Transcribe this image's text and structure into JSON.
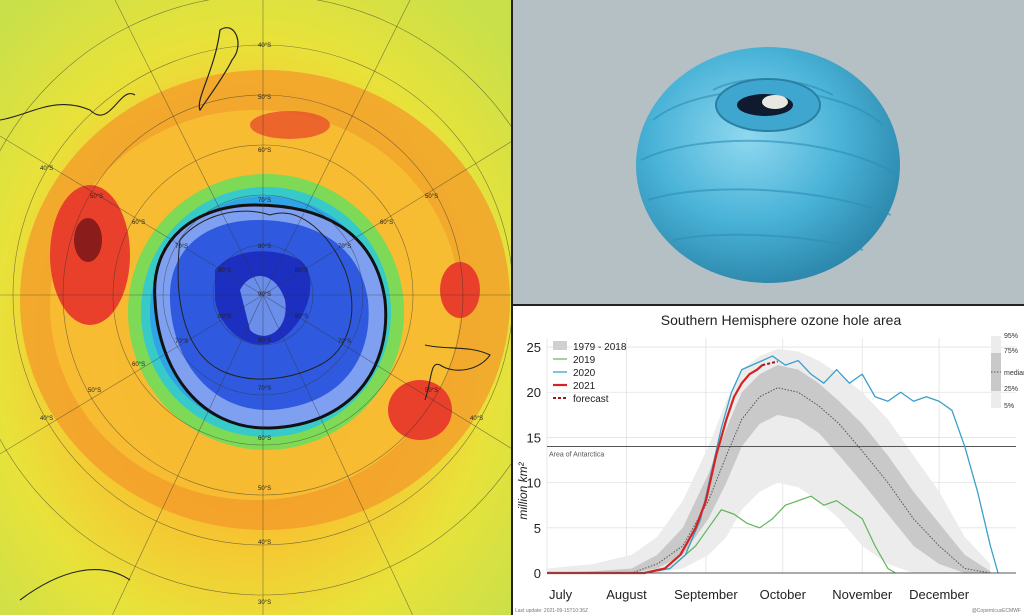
{
  "map": {
    "lat_labels_outer": [
      "40°S",
      "50°S",
      "60°S",
      "70°S",
      "80°S",
      "90°S"
    ],
    "lat_label_40": "40°S",
    "lat_label_50": "50°S",
    "lat_label_60": "60°S",
    "lat_label_70": "70°S",
    "lat_label_80": "80°S",
    "lat_label_90": "90°S",
    "lat_label_30": "30°S"
  },
  "chart_data": {
    "type": "line",
    "title": "Southern Hemisphere ozone hole area",
    "ylabel": "million km²",
    "ylim": [
      0,
      26
    ],
    "yticks": [
      0,
      5,
      10,
      15,
      20,
      25
    ],
    "x_months": [
      "July",
      "August",
      "September",
      "October",
      "November",
      "December"
    ],
    "xlim_day": [
      182,
      365
    ],
    "month_start_days": [
      182,
      213,
      244,
      274,
      305,
      335
    ],
    "antarctica_area": 14,
    "antarctica_label": "Area of Antarctica",
    "legend": {
      "climatology": "1979 - 2018",
      "s2019": "2019",
      "s2020": "2020",
      "s2021": "2021",
      "forecast": "forecast"
    },
    "percentile_legend": [
      "95%",
      "75%",
      "median",
      "25%",
      "5%"
    ],
    "footer_left": "Last update: 2021-09-15T10:36Z",
    "footer_right": "@CopernicusECMWF",
    "colors": {
      "s2019": "#5fb55a",
      "s2020": "#3a9fca",
      "s2021": "#d62222",
      "forecast": "#a0161c",
      "median": "#555555",
      "band_outer": "#ececec",
      "band_inner": "#c9c9c9",
      "antarctica": "#555555"
    },
    "climatology": {
      "day": [
        182,
        200,
        215,
        225,
        235,
        245,
        252,
        258,
        265,
        272,
        280,
        288,
        296,
        305,
        315,
        325,
        335,
        345,
        355
      ],
      "p5": [
        0,
        0,
        0,
        0,
        0.5,
        2,
        4,
        7,
        9,
        10,
        9.5,
        8,
        6,
        3,
        1,
        0,
        0,
        0,
        0
      ],
      "p25": [
        0,
        0,
        0,
        0.5,
        2,
        6,
        10,
        14,
        16.5,
        17.5,
        17,
        15.5,
        13,
        10,
        6.5,
        3,
        1,
        0,
        0
      ],
      "median": [
        0,
        0,
        0,
        1,
        3,
        8,
        13,
        17,
        19.5,
        20.5,
        20,
        18.5,
        16.5,
        13.5,
        10,
        6,
        3,
        0.5,
        0
      ],
      "p75": [
        0,
        0.2,
        0.5,
        2,
        5,
        11,
        16,
        20,
        22,
        23,
        22.5,
        21,
        19,
        16.5,
        13,
        9,
        5.5,
        2,
        0.2
      ],
      "p95": [
        0.5,
        1,
        2,
        4,
        8,
        14,
        19,
        22.5,
        24,
        24.8,
        24.5,
        23.5,
        22,
        20,
        17,
        13,
        9,
        4,
        1
      ]
    },
    "s2019": {
      "day": [
        182,
        220,
        230,
        240,
        245,
        250,
        255,
        260,
        265,
        270,
        275,
        280,
        285,
        290,
        295,
        300,
        305,
        310,
        315,
        318
      ],
      "values": [
        0,
        0,
        0.5,
        3,
        5,
        7,
        6.5,
        5.5,
        5,
        6,
        7.5,
        8,
        8.5,
        7.5,
        8,
        7,
        6,
        3,
        0.5,
        0
      ]
    },
    "s2020": {
      "day": [
        182,
        220,
        230,
        236,
        242,
        246,
        250,
        254,
        258,
        262,
        266,
        270,
        275,
        280,
        285,
        290,
        295,
        300,
        305,
        310,
        315,
        320,
        325,
        330,
        335,
        340,
        345,
        350,
        355,
        358
      ],
      "values": [
        0,
        0,
        0.5,
        2,
        6,
        11,
        16,
        20,
        22.5,
        23,
        23.5,
        24,
        23,
        23.5,
        22,
        21,
        22.5,
        21,
        22,
        19.5,
        19,
        20,
        19,
        19.5,
        19,
        18,
        14,
        9,
        3,
        0
      ]
    },
    "s2021": {
      "day": [
        182,
        220,
        228,
        234,
        240,
        244,
        248,
        252,
        255,
        258,
        261,
        264,
        266
      ],
      "values": [
        0,
        0,
        0.5,
        2,
        5,
        8,
        13,
        17,
        19.5,
        21,
        22,
        22.5,
        23
      ]
    },
    "forecast": {
      "day": [
        266,
        269,
        272
      ],
      "values": [
        23,
        23.2,
        23.4
      ]
    }
  }
}
